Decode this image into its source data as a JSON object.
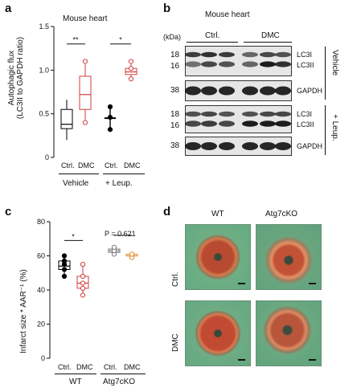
{
  "panel_labels": {
    "a": "a",
    "b": "b",
    "c": "c",
    "d": "d"
  },
  "panel_a": {
    "title": "Mouse heart",
    "ylabel_line1": "Autophagic flux",
    "ylabel_line2": "(LC3II to GAPDH ratio)",
    "yticks": [
      "0",
      "0.5",
      "1.0",
      "1.5"
    ],
    "xticks": [
      "Ctrl.",
      "DMC",
      "Ctrl.",
      "DMC"
    ],
    "groups": [
      "Vehicle",
      "+ Leup."
    ],
    "sig": [
      "**",
      "*"
    ],
    "colors": {
      "ctrl": "#000000",
      "dmc": "#d23c3c"
    }
  },
  "panel_b": {
    "title": "Mouse heart",
    "kda_label": "(kDa)",
    "ctrl_label": "Ctrl.",
    "dmc_label": "DMC",
    "mw_18": "18",
    "mw_16": "16",
    "mw_38": "38",
    "lc3i": "LC3I",
    "lc3ii": "LC3II",
    "gapdh": "GAPDH",
    "vehicle": "Vehicle",
    "leup": "+ Leup."
  },
  "panel_c": {
    "ylabel": "Infarct size * AAR⁻¹ (%)",
    "yticks": [
      "0",
      "20",
      "40",
      "60",
      "80"
    ],
    "xticks": [
      "Ctrl.",
      "DMC",
      "Ctrl.",
      "DMC"
    ],
    "groups": [
      "WT",
      "Atg7cKO"
    ],
    "sig": "*",
    "pvalue": "P = 0.621",
    "colors": {
      "ctrl": "#000000",
      "dmc": "#d23c3c",
      "ko_ctrl": "#7a7a7a",
      "ko_dmc": "#e08a2a"
    }
  },
  "panel_d": {
    "col_wt": "WT",
    "col_ko": "Atg7cKO",
    "row_ctrl": "Ctrl.",
    "row_dmc": "DMC"
  },
  "chart_data": [
    {
      "type": "box",
      "panel": "a",
      "categories": [
        "Vehicle Ctrl.",
        "Vehicle DMC",
        "+ Leup. Ctrl.",
        "+ Leup. DMC"
      ],
      "ylim": [
        0,
        1.5
      ],
      "yticks": [
        0,
        0.5,
        1.0,
        1.5
      ],
      "series": [
        {
          "values": [
            0.2,
            0.33,
            0.38,
            0.55,
            0.66
          ]
        },
        {
          "values": [
            0.4,
            0.55,
            0.72,
            0.93,
            1.1
          ]
        },
        {
          "values": [
            0.32,
            0.44,
            0.45,
            0.48,
            0.58
          ]
        },
        {
          "values": [
            0.9,
            0.95,
            0.98,
            1.02,
            1.1
          ]
        }
      ]
    },
    {
      "type": "box",
      "panel": "c",
      "categories": [
        "WT Ctrl.",
        "WT DMC",
        "Atg7cKO Ctrl.",
        "Atg7cKO DMC"
      ],
      "ylim": [
        0,
        80
      ],
      "yticks": [
        0,
        20,
        40,
        60,
        80
      ],
      "series": [
        {
          "values": [
            48,
            52,
            54,
            57,
            60
          ]
        },
        {
          "values": [
            37,
            41,
            44,
            48,
            55
          ]
        },
        {
          "values": [
            61,
            62,
            63,
            64,
            65
          ]
        },
        {
          "values": [
            59,
            60,
            60,
            61,
            61
          ]
        }
      ]
    }
  ]
}
